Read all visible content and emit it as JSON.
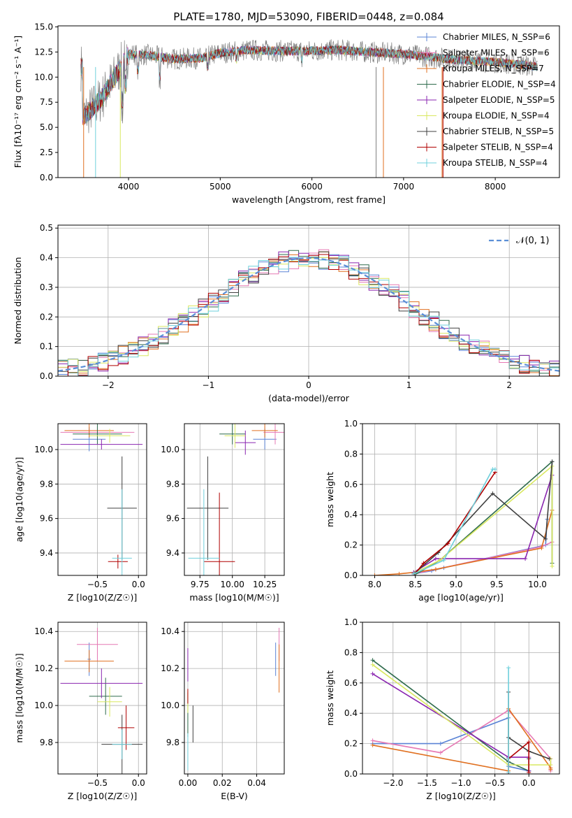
{
  "figure": {
    "title": "PLATE=1780, MJD=53090, FIBERID=0448, z=0.084"
  },
  "chart_data": [
    {
      "id": "spectrum",
      "type": "line",
      "title": "PLATE=1780, MJD=53090, FIBERID=0448, z=0.084",
      "xlabel": "wavelength [Angstrom, rest frame]",
      "ylabel": "Flux [fλ10⁻¹⁷ erg cm⁻² s⁻¹ A⁻¹]",
      "xlim": [
        3230,
        8700
      ],
      "ylim": [
        0,
        15.1
      ],
      "xticks": [
        4000,
        5000,
        6000,
        7000,
        8000
      ],
      "yticks": [
        0.0,
        2.5,
        5.0,
        7.5,
        10.0,
        12.5,
        15.0
      ],
      "xtick_labels": [
        "4000",
        "5000",
        "6000",
        "7000",
        "8000"
      ],
      "ytick_labels": [
        "0.0",
        "2.5",
        "5.0",
        "7.5",
        "10.0",
        "12.5",
        "15.0"
      ],
      "legend_position": "top-right",
      "legend": [
        {
          "label": "Chabrier MILES, N_SSP=6",
          "color": "#5b84d6"
        },
        {
          "label": "Salpeter MILES, N_SSP=6",
          "color": "#e678b4"
        },
        {
          "label": "Kroupa MILES, N_SSP=7",
          "color": "#e07020"
        },
        {
          "label": "Chabrier ELODIE, N_SSP=4",
          "color": "#2e6b4c"
        },
        {
          "label": "Salpeter ELODIE, N_SSP=5",
          "color": "#8a25b0"
        },
        {
          "label": "Kroupa ELODIE, N_SSP=4",
          "color": "#d9e860"
        },
        {
          "label": "Chabrier STELIB, N_SSP=5",
          "color": "#404040"
        },
        {
          "label": "Salpeter STELIB, N_SSP=4",
          "color": "#b00000"
        },
        {
          "label": "Kroupa STELIB, N_SSP=4",
          "color": "#6fd0dc"
        }
      ],
      "data_color": "#808080",
      "continuum": {
        "x": [
          3500,
          3700,
          3900,
          4000,
          4200,
          4500,
          4800,
          5000,
          5300,
          5600,
          6000,
          6300,
          6600,
          7000,
          7300,
          7600,
          8000,
          8300,
          8500
        ],
        "y": [
          6.0,
          7.8,
          10.8,
          12.3,
          12.2,
          11.8,
          11.9,
          12.4,
          12.7,
          12.6,
          12.6,
          12.7,
          12.5,
          12.3,
          12.0,
          11.7,
          11.5,
          11.2,
          11.0
        ]
      }
    },
    {
      "id": "residuals",
      "type": "line",
      "xlabel": "(data-model)/error",
      "ylabel": "Normed distribution",
      "xlim": [
        -2.5,
        2.5
      ],
      "ylim": [
        0,
        0.51
      ],
      "xticks": [
        -2,
        -1,
        0,
        1,
        2
      ],
      "xtick_labels": [
        "−2",
        "−1",
        "0",
        "1",
        "2"
      ],
      "yticks": [
        0.0,
        0.1,
        0.2,
        0.3,
        0.4,
        0.5
      ],
      "ytick_labels": [
        "0.0",
        "0.1",
        "0.2",
        "0.3",
        "0.4",
        "0.5"
      ],
      "grid": true,
      "legend_position": "top-right",
      "gaussian_label": "𝒩(0, 1)",
      "gaussian_color": "#5b8fd6"
    },
    {
      "id": "age-vs-Z",
      "type": "scatter",
      "xlabel": "Z [log10(Z/Z☉)]",
      "ylabel": "age  [log10(age/yr)]",
      "xlim": [
        -0.98,
        0.1
      ],
      "ylim": [
        9.27,
        10.15
      ],
      "xticks": [
        -0.5,
        0.0
      ],
      "xtick_labels": [
        "−0.5",
        "0.0"
      ],
      "yticks": [
        9.4,
        9.6,
        9.8,
        10.0
      ],
      "ytick_labels": [
        "9.4",
        "9.6",
        "9.8",
        "10.0"
      ],
      "grid": true,
      "points": [
        {
          "x": -0.6,
          "y": 10.06,
          "xerr": 0.2,
          "yerr": 0.07,
          "color": "#5b84d6"
        },
        {
          "x": -0.5,
          "y": 10.1,
          "xerr": 0.45,
          "yerr": 0.03,
          "color": "#e678b4"
        },
        {
          "x": -0.6,
          "y": 10.11,
          "xerr": 0.3,
          "yerr": 0.04,
          "color": "#e07020"
        },
        {
          "x": -0.5,
          "y": 10.09,
          "xerr": 0.3,
          "yerr": 0.06,
          "color": "#2e6b4c"
        },
        {
          "x": -0.45,
          "y": 10.03,
          "xerr": 0.5,
          "yerr": 0.03,
          "color": "#8a25b0"
        },
        {
          "x": -0.35,
          "y": 10.08,
          "xerr": 0.25,
          "yerr": 0.04,
          "color": "#d9e860"
        },
        {
          "x": -0.2,
          "y": 9.66,
          "xerr": 0.18,
          "yerr": 0.3,
          "color": "#404040"
        },
        {
          "x": -0.25,
          "y": 9.35,
          "xerr": 0.12,
          "yerr": 0.04,
          "color": "#b00000"
        },
        {
          "x": -0.2,
          "y": 9.37,
          "xerr": 0.12,
          "yerr": 0.4,
          "color": "#6fd0dc"
        }
      ]
    },
    {
      "id": "age-vs-mass",
      "type": "scatter",
      "xlabel": "mass [log10(M/M☉)]",
      "ylabel": "",
      "xlim": [
        9.63,
        10.4
      ],
      "ylim": [
        9.27,
        10.15
      ],
      "xticks": [
        9.75,
        10.0,
        10.25
      ],
      "xtick_labels": [
        "9.75",
        "10.00",
        "10.25"
      ],
      "yticks": [
        9.4,
        9.6,
        9.8,
        10.0
      ],
      "ytick_labels": [
        "9.4",
        "9.6",
        "9.8",
        "10.0"
      ],
      "grid": true,
      "points": [
        {
          "x": 10.25,
          "y": 10.06,
          "xerr": 0.09,
          "yerr": 0.06,
          "color": "#5b84d6"
        },
        {
          "x": 10.33,
          "y": 10.1,
          "xerr": 0.09,
          "yerr": 0.07,
          "color": "#e678b4"
        },
        {
          "x": 10.25,
          "y": 10.11,
          "xerr": 0.1,
          "yerr": 0.04,
          "color": "#e07020"
        },
        {
          "x": 10.0,
          "y": 10.09,
          "xerr": 0.1,
          "yerr": 0.06,
          "color": "#2e6b4c"
        },
        {
          "x": 10.1,
          "y": 10.04,
          "xerr": 0.08,
          "yerr": 0.07,
          "color": "#8a25b0"
        },
        {
          "x": 10.02,
          "y": 10.08,
          "xerr": 0.08,
          "yerr": 0.07,
          "color": "#d9e860"
        },
        {
          "x": 9.81,
          "y": 9.66,
          "xerr": 0.16,
          "yerr": 0.3,
          "color": "#404040"
        },
        {
          "x": 9.9,
          "y": 9.35,
          "xerr": 0.12,
          "yerr": 0.4,
          "color": "#b00000"
        },
        {
          "x": 9.78,
          "y": 9.37,
          "xerr": 0.12,
          "yerr": 0.4,
          "color": "#6fd0dc"
        }
      ]
    },
    {
      "id": "massweight-vs-age",
      "type": "line",
      "xlabel": "age  [log10(age/yr)]",
      "ylabel": "mass weight",
      "xlim": [
        7.85,
        10.27
      ],
      "ylim": [
        0,
        1.0
      ],
      "xticks": [
        8.0,
        8.5,
        9.0,
        9.5,
        10.0
      ],
      "xtick_labels": [
        "8.0",
        "8.5",
        "9.0",
        "9.5",
        "10.0"
      ],
      "yticks": [
        0.0,
        0.2,
        0.4,
        0.6,
        0.8,
        1.0
      ],
      "ytick_labels": [
        "0.0",
        "0.2",
        "0.4",
        "0.6",
        "0.8",
        "1.0"
      ],
      "grid": true,
      "series": [
        {
          "color": "#5b84d6",
          "x": [
            8.48,
            8.7,
            8.85,
            10.1,
            10.12
          ],
          "y": [
            0.01,
            0.03,
            0.05,
            0.2,
            0.37
          ]
        },
        {
          "color": "#e678b4",
          "x": [
            8.48,
            8.75,
            10.05,
            10.18
          ],
          "y": [
            0.01,
            0.04,
            0.19,
            0.22
          ]
        },
        {
          "color": "#e07020",
          "x": [
            8.0,
            8.3,
            8.48,
            8.75,
            10.05,
            10.18
          ],
          "y": [
            0.0,
            0.01,
            0.02,
            0.04,
            0.18,
            0.43
          ]
        },
        {
          "color": "#2e6b4c",
          "x": [
            8.48,
            8.8,
            10.18,
            10.18
          ],
          "y": [
            0.0,
            0.1,
            0.75,
            0.08
          ]
        },
        {
          "color": "#8a25b0",
          "x": [
            8.48,
            8.75,
            9.85,
            10.18
          ],
          "y": [
            0.02,
            0.11,
            0.11,
            0.66
          ]
        },
        {
          "color": "#d9e860",
          "x": [
            8.5,
            8.8,
            10.18,
            10.18
          ],
          "y": [
            0.02,
            0.1,
            0.72,
            0.06
          ]
        },
        {
          "color": "#404040",
          "x": [
            8.48,
            8.78,
            9.45,
            10.1,
            10.18
          ],
          "y": [
            0.01,
            0.15,
            0.54,
            0.24,
            0.75
          ]
        },
        {
          "color": "#b00000",
          "x": [
            8.48,
            8.6,
            8.9,
            9.48
          ],
          "y": [
            0.0,
            0.08,
            0.21,
            0.68
          ]
        },
        {
          "color": "#6fd0dc",
          "x": [
            8.48,
            8.85,
            9.45,
            9.48
          ],
          "y": [
            0.01,
            0.1,
            0.7,
            0.7
          ]
        }
      ]
    },
    {
      "id": "mass-vs-Z",
      "type": "scatter",
      "xlabel": "Z [log10(Z/Z☉)]",
      "ylabel": "mass [log10(M/M☉)]",
      "xlim": [
        -0.98,
        0.1
      ],
      "ylim": [
        9.63,
        10.45
      ],
      "xticks": [
        -0.5,
        0.0
      ],
      "xtick_labels": [
        "−0.5",
        "0.0"
      ],
      "yticks": [
        9.8,
        10.0,
        10.2,
        10.4
      ],
      "ytick_labels": [
        "9.8",
        "10.0",
        "10.2",
        "10.4"
      ],
      "grid": true,
      "points": [
        {
          "x": -0.6,
          "y": 10.25,
          "xerr": 0.02,
          "yerr": 0.09,
          "color": "#5b84d6"
        },
        {
          "x": -0.5,
          "y": 10.33,
          "xerr": 0.25,
          "yerr": 0.09,
          "color": "#e678b4"
        },
        {
          "x": -0.6,
          "y": 10.24,
          "xerr": 0.3,
          "yerr": 0.06,
          "color": "#e07020"
        },
        {
          "x": -0.4,
          "y": 10.05,
          "xerr": 0.2,
          "yerr": 0.1,
          "color": "#2e6b4c"
        },
        {
          "x": -0.45,
          "y": 10.12,
          "xerr": 0.5,
          "yerr": 0.08,
          "color": "#8a25b0"
        },
        {
          "x": -0.35,
          "y": 10.02,
          "xerr": 0.15,
          "yerr": 0.08,
          "color": "#d9e860"
        },
        {
          "x": -0.2,
          "y": 9.79,
          "xerr": 0.25,
          "yerr": 0.16,
          "color": "#404040"
        },
        {
          "x": -0.15,
          "y": 9.88,
          "xerr": 0.1,
          "yerr": 0.12,
          "color": "#b00000"
        },
        {
          "x": -0.2,
          "y": 9.79,
          "xerr": 0.12,
          "yerr": 0.08,
          "color": "#6fd0dc"
        }
      ]
    },
    {
      "id": "mass-vs-EBV",
      "type": "scatter",
      "xlabel": "E(B-V)",
      "ylabel": "",
      "xlim": [
        -0.002,
        0.056
      ],
      "ylim": [
        9.63,
        10.45
      ],
      "xticks": [
        0.0,
        0.02,
        0.04
      ],
      "xtick_labels": [
        "0.00",
        "0.02",
        "0.04"
      ],
      "yticks": [
        9.8,
        10.0,
        10.2,
        10.4
      ],
      "ytick_labels": [
        "9.8",
        "10.0",
        "10.2",
        "10.4"
      ],
      "grid": true,
      "points": [
        {
          "x": 0.051,
          "y": 10.25,
          "xerr": 0.0,
          "yerr": 0.09,
          "color": "#5b84d6"
        },
        {
          "x": 0.053,
          "y": 10.33,
          "xerr": 0.0,
          "yerr": 0.09,
          "color": "#e678b4"
        },
        {
          "x": 0.053,
          "y": 10.2,
          "xerr": 0.0,
          "yerr": 0.13,
          "color": "#e07020"
        },
        {
          "x": 0.0,
          "y": 9.95,
          "xerr": 0.0,
          "yerr": 0.12,
          "color": "#2e6b4c"
        },
        {
          "x": 0.0,
          "y": 10.22,
          "xerr": 0.0,
          "yerr": 0.09,
          "color": "#8a25b0"
        },
        {
          "x": 0.0,
          "y": 10.02,
          "xerr": 0.0,
          "yerr": 0.06,
          "color": "#d9e860"
        },
        {
          "x": 0.003,
          "y": 9.9,
          "xerr": 0.0,
          "yerr": 0.1,
          "color": "#404040"
        },
        {
          "x": 0.0,
          "y": 10.05,
          "xerr": 0.0,
          "yerr": 0.04,
          "color": "#b00000"
        },
        {
          "x": 0.0,
          "y": 9.75,
          "xerr": 0.0,
          "yerr": 0.1,
          "color": "#6fd0dc"
        }
      ]
    },
    {
      "id": "massweight-vs-Z",
      "type": "line",
      "xlabel": "Z [log10(Z/Z☉)]",
      "ylabel": "mass weight",
      "xlim": [
        -2.45,
        0.45
      ],
      "ylim": [
        0,
        1.0
      ],
      "xticks": [
        -2.0,
        -1.5,
        -1.0,
        -0.5,
        0.0
      ],
      "xtick_labels": [
        "−2.0",
        "−1.5",
        "−1.0",
        "−0.5",
        "0.0"
      ],
      "yticks": [
        0.0,
        0.2,
        0.4,
        0.6,
        0.8,
        1.0
      ],
      "ytick_labels": [
        "0.0",
        "0.2",
        "0.4",
        "0.6",
        "0.8",
        "1.0"
      ],
      "grid": true,
      "series": [
        {
          "color": "#5b84d6",
          "x": [
            -2.3,
            -1.3,
            -0.3,
            -0.3,
            0.0,
            0.0
          ],
          "y": [
            0.2,
            0.2,
            0.37,
            0.05,
            0.02,
            0.1
          ]
        },
        {
          "color": "#e678b4",
          "x": [
            -2.3,
            -1.3,
            -0.3,
            0.32,
            0.32
          ],
          "y": [
            0.22,
            0.14,
            0.42,
            0.1,
            0.02
          ]
        },
        {
          "color": "#e07020",
          "x": [
            -2.3,
            -0.3,
            -0.3,
            0.32,
            0.32
          ],
          "y": [
            0.19,
            0.02,
            0.43,
            0.04,
            0.03
          ]
        },
        {
          "color": "#2e6b4c",
          "x": [
            -2.3,
            -0.3,
            0.0,
            0.0
          ],
          "y": [
            0.75,
            0.08,
            0.02,
            0.1
          ]
        },
        {
          "color": "#8a25b0",
          "x": [
            -2.3,
            -0.3,
            0.0,
            0.0
          ],
          "y": [
            0.66,
            0.11,
            0.11,
            0.02
          ]
        },
        {
          "color": "#d9e860",
          "x": [
            -2.3,
            -0.3,
            0.32,
            0.32
          ],
          "y": [
            0.72,
            0.06,
            0.06,
            0.1
          ]
        },
        {
          "color": "#404040",
          "x": [
            -0.3,
            -0.3,
            0.0,
            0.3
          ],
          "y": [
            0.54,
            0.24,
            0.15,
            0.1
          ]
        },
        {
          "color": "#b00000",
          "x": [
            -0.3,
            -0.3,
            0.0,
            0.0
          ],
          "y": [
            0.0,
            0.1,
            0.21,
            0.01
          ]
        },
        {
          "color": "#6fd0dc",
          "x": [
            -0.3,
            -0.3,
            -0.3
          ],
          "y": [
            0.7,
            0.01,
            0.1
          ]
        }
      ]
    }
  ]
}
